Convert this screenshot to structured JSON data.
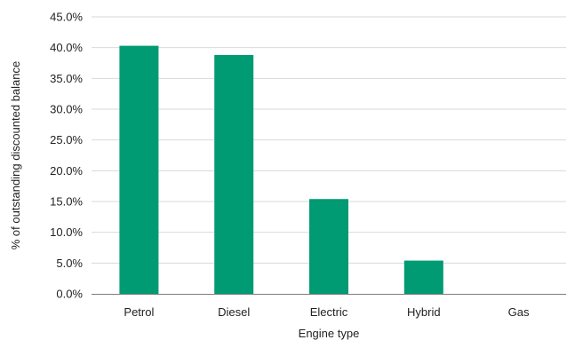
{
  "chart_data": {
    "type": "bar",
    "title": "",
    "xlabel": "Engine type",
    "ylabel": "% of outstanding discounted balance",
    "categories": [
      "Petrol",
      "Diesel",
      "Electric",
      "Hybrid",
      "Gas"
    ],
    "values": [
      40.3,
      38.8,
      15.4,
      5.4,
      0.0
    ],
    "ylim": [
      0,
      45
    ],
    "yticks": [
      "0.0%",
      "5.0%",
      "10.0%",
      "15.0%",
      "20.0%",
      "25.0%",
      "30.0%",
      "35.0%",
      "40.0%",
      "45.0%"
    ],
    "ytick_values": [
      0,
      5,
      10,
      15,
      20,
      25,
      30,
      35,
      40,
      45
    ],
    "grid": true,
    "legend": "none",
    "bar_color": "#009a73",
    "grid_color": "#d9d9d9",
    "axis_color": "#7f7f7f"
  }
}
